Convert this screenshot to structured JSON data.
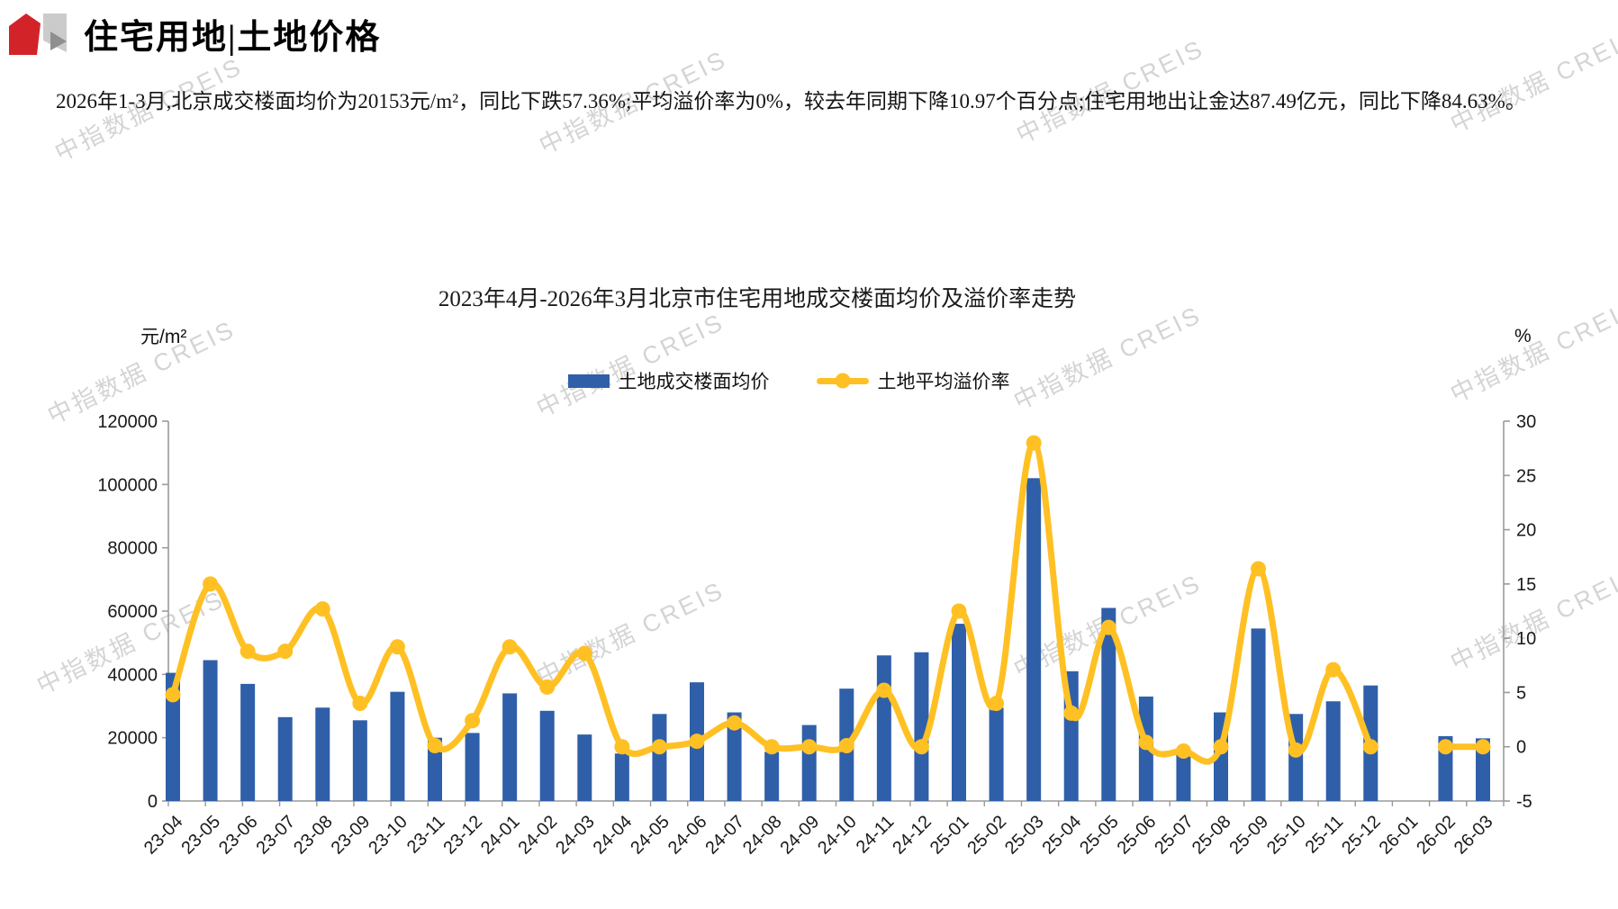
{
  "header": {
    "title": "住宅用地|土地价格"
  },
  "summary": {
    "text": "2026年1-3月,北京成交楼面均价为20153元/m²，同比下跌57.36%;平均溢价率为0%，较去年同期下降10.97个百分点;住宅用地出让金达87.49亿元，同比下降84.63%。"
  },
  "watermark": {
    "text": "中指数据 CREIS"
  },
  "chart_data": {
    "type": "bar",
    "combo": [
      "bar",
      "line"
    ],
    "title": "2023年4月-2026年3月北京市住宅用地成交楼面均价及溢价率走势",
    "grid": false,
    "legend_position": "top",
    "left_axis": {
      "unit": "元/m²",
      "min": 0,
      "max": 120000,
      "step": 20000
    },
    "right_axis": {
      "unit": "%",
      "min": -5,
      "max": 30,
      "step": 5
    },
    "categories": [
      "23-04",
      "23-05",
      "23-06",
      "23-07",
      "23-08",
      "23-09",
      "23-10",
      "23-11",
      "23-12",
      "24-01",
      "24-02",
      "24-03",
      "24-04",
      "24-05",
      "24-06",
      "24-07",
      "24-08",
      "24-09",
      "24-10",
      "24-11",
      "24-12",
      "25-01",
      "25-02",
      "25-03",
      "25-04",
      "25-05",
      "25-06",
      "25-07",
      "25-08",
      "25-09",
      "25-10",
      "25-11",
      "25-12",
      "26-01",
      "26-02",
      "26-03"
    ],
    "series": [
      {
        "name": "土地成交楼面均价",
        "type": "bar",
        "axis": "left",
        "color": "#2F5FA8",
        "values": [
          40500,
          44500,
          37000,
          26500,
          29500,
          25500,
          34500,
          20000,
          21500,
          34000,
          28500,
          21000,
          15000,
          27500,
          37500,
          28000,
          15500,
          24000,
          35500,
          46000,
          47000,
          56000,
          29500,
          102000,
          41000,
          61000,
          33000,
          15500,
          28000,
          54500,
          27500,
          31500,
          36500,
          null,
          20500,
          19800
        ]
      },
      {
        "name": "土地平均溢价率",
        "type": "line",
        "axis": "right",
        "color": "#FFC024",
        "values": [
          4.8,
          15,
          8.8,
          8.8,
          12.7,
          4,
          9.2,
          0.1,
          2.4,
          9.2,
          5.5,
          8.6,
          0,
          0,
          0.5,
          2.2,
          0,
          0,
          0.1,
          5.2,
          0,
          12.5,
          4,
          28,
          3.1,
          11,
          0.4,
          -0.4,
          0,
          16.4,
          -0.3,
          7.1,
          0,
          null,
          0,
          0
        ]
      }
    ]
  }
}
